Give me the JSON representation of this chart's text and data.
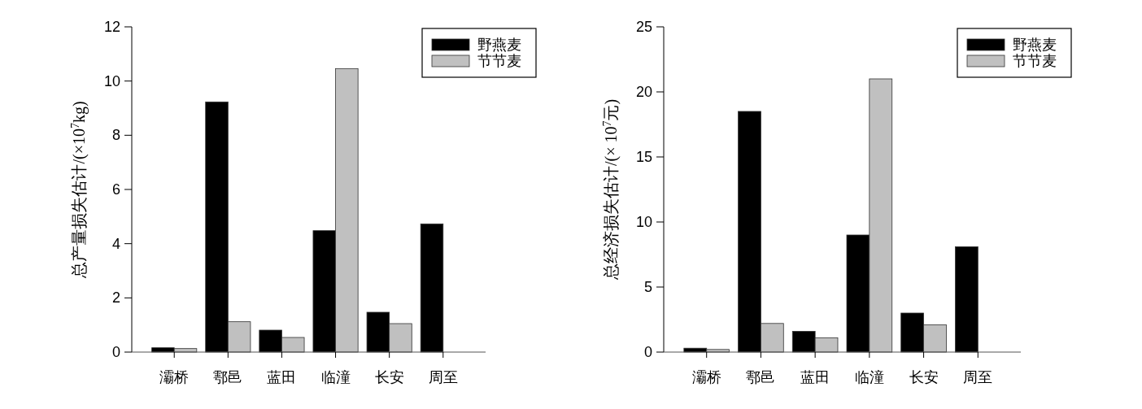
{
  "chart_data": [
    {
      "type": "bar",
      "ylabel": "总产量损失估计/(×10$^{7}$kg)",
      "categories": [
        "灞桥",
        "鄠邑",
        "蓝田",
        "临潼",
        "长安",
        "周至"
      ],
      "ylim": [
        0,
        12
      ],
      "yticks": [
        0,
        2,
        4,
        6,
        8,
        10,
        12
      ],
      "legend": "top right",
      "grid": false,
      "series": [
        {
          "name": "野燕麦",
          "color": "#000000",
          "values": [
            0.16,
            9.23,
            0.81,
            4.48,
            1.47,
            4.73
          ]
        },
        {
          "name": "节节麦",
          "color": "#c0c0c0",
          "values": [
            0.13,
            1.12,
            0.54,
            10.46,
            1.05,
            null
          ]
        }
      ]
    },
    {
      "type": "bar",
      "ylabel": "总经济损失估计/(× 10$^{7}$元)",
      "categories": [
        "灞桥",
        "鄠邑",
        "蓝田",
        "临潼",
        "长安",
        "周至"
      ],
      "ylim": [
        0,
        25
      ],
      "yticks": [
        0,
        5,
        10,
        15,
        20,
        25
      ],
      "legend": "top right",
      "grid": false,
      "series": [
        {
          "name": "野燕麦",
          "color": "#000000",
          "values": [
            0.3,
            18.5,
            1.6,
            9.0,
            3.0,
            8.1
          ]
        },
        {
          "name": "节节麦",
          "color": "#c0c0c0",
          "values": [
            0.2,
            2.2,
            1.1,
            21.0,
            2.1,
            null
          ]
        }
      ]
    }
  ]
}
